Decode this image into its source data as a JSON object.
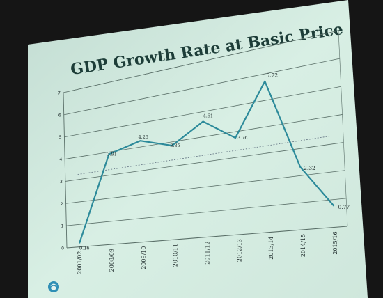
{
  "chart_data": {
    "type": "line",
    "title": "GDP Growth Rate at Basic Price",
    "xlabel": "",
    "ylabel": "",
    "categories": [
      "2001/02",
      "2008/09",
      "2009/10",
      "2010/11",
      "2011/12",
      "2012/13",
      "2013/14",
      "2014/15",
      "2015/16"
    ],
    "values": [
      0.16,
      3.91,
      4.26,
      3.85,
      4.61,
      3.76,
      5.72,
      2.32,
      0.77
    ],
    "data_labels": [
      "0.16",
      "3.91",
      "4.26",
      "3.85",
      "4.61",
      "3.76",
      "5.72",
      "2.32",
      "0.77"
    ],
    "yticks": [
      "0",
      "1",
      "2",
      "3",
      "4",
      "5",
      "6",
      "7"
    ],
    "ylim": [
      0,
      7
    ],
    "grid": true,
    "trend_line": true,
    "legend": "none",
    "colors": {
      "line": "#2c8a9a",
      "title": "#1d3d38",
      "grid": "#5a6f68",
      "text": "#1d2a2a",
      "screen": "#d4ebe0",
      "trend": "#6c7d8a"
    }
  }
}
